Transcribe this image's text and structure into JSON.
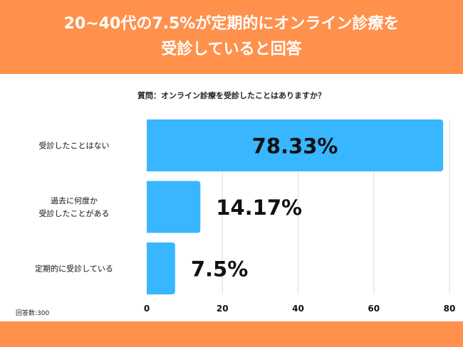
{
  "header": {
    "line1": "20~40代の7.5%が定期的にオンライン診療を",
    "line2": "受診していると回答"
  },
  "question": "質問：オンライン診療を受診したことはありますか？",
  "respondents": "回答数:300",
  "colors": {
    "accent": "#FF914D",
    "bar": "#38B6FF"
  },
  "chart_data": {
    "type": "bar",
    "orientation": "horizontal",
    "categories": [
      [
        "受診したことはない"
      ],
      [
        "過去に何度か",
        "受診したことがある"
      ],
      [
        "定期的に受診している"
      ]
    ],
    "values": [
      78.33,
      14.17,
      7.5
    ],
    "labels": [
      "78.33%",
      "14.17%",
      "7.5%"
    ],
    "xlim": [
      0,
      80
    ],
    "ticks": [
      "0",
      "20",
      "40",
      "60",
      "80"
    ],
    "tick_values": [
      0,
      20,
      40,
      60,
      80
    ],
    "grid": true
  }
}
